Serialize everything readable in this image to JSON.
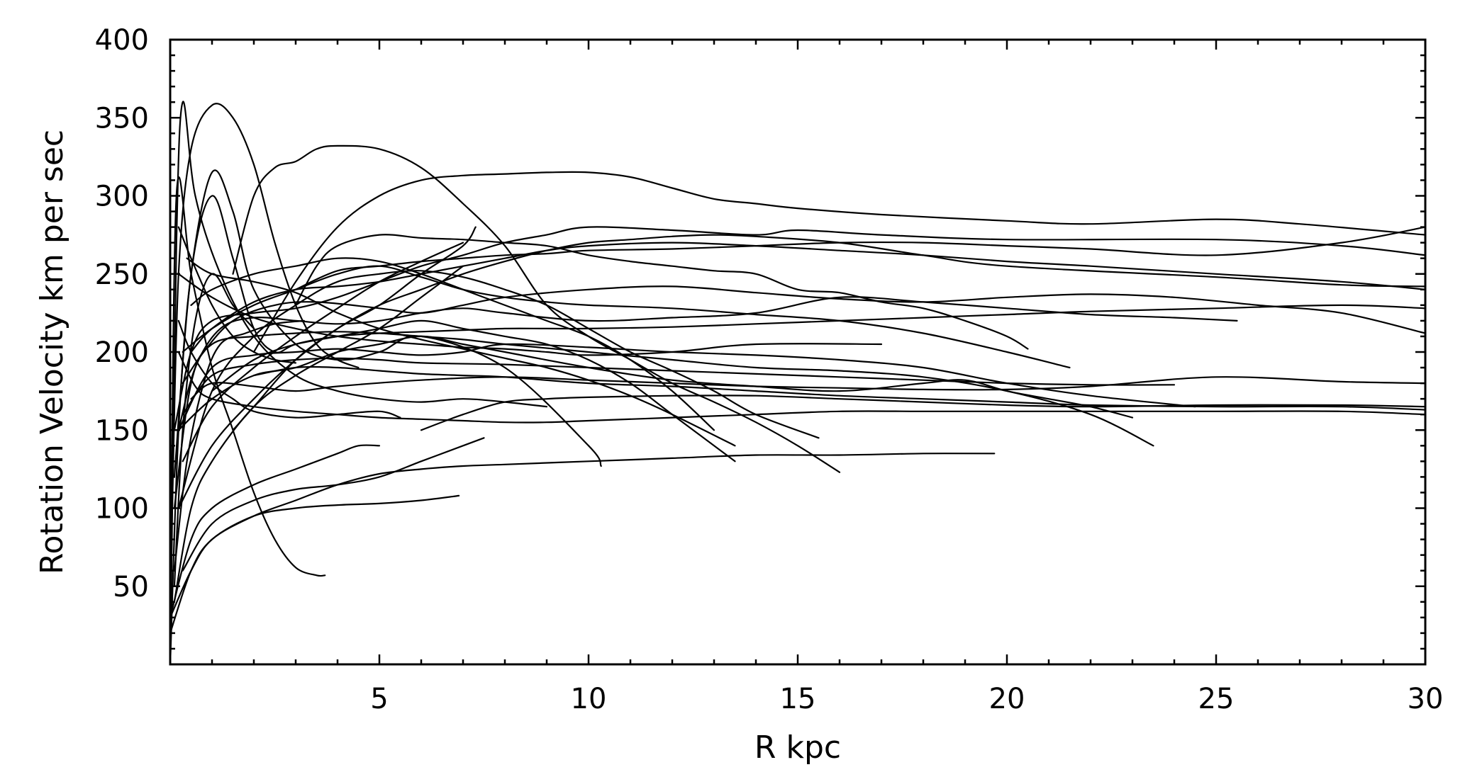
{
  "chart_data": {
    "type": "line",
    "title": "",
    "xlabel": "R  kpc",
    "ylabel": "Rotation Velocity km per sec",
    "xlim": [
      0,
      30
    ],
    "ylim": [
      0,
      400
    ],
    "xticks": [
      5,
      10,
      15,
      20,
      25,
      30
    ],
    "yticks": [
      50,
      100,
      150,
      200,
      250,
      300,
      350,
      400
    ],
    "grid": false,
    "legend": "none",
    "line_color": "#000000",
    "series": [
      {
        "x": [
          0,
          0.15,
          0.5,
          1,
          1.5,
          2,
          2.5,
          3,
          3.5,
          3.7
        ],
        "y": [
          10,
          300,
          250,
          190,
          150,
          110,
          80,
          62,
          57,
          57
        ]
      },
      {
        "x": [
          0,
          0.15,
          0.3,
          0.6,
          1.2,
          2,
          3,
          4,
          5,
          6,
          7,
          8,
          9
        ],
        "y": [
          0,
          270,
          360,
          300,
          250,
          210,
          185,
          175,
          170,
          168,
          170,
          168,
          165
        ]
      },
      {
        "x": [
          0,
          0.2,
          0.5,
          1,
          1.5,
          2,
          3,
          4,
          5,
          6,
          8,
          10,
          10.3
        ],
        "y": [
          0,
          150,
          250,
          315,
          290,
          240,
          205,
          195,
          200,
          210,
          190,
          140,
          127
        ]
      },
      {
        "x": [
          0.05,
          0.2,
          0.5,
          1,
          1.5,
          2,
          2.5,
          3,
          3.5,
          4,
          4.5
        ],
        "y": [
          100,
          250,
          330,
          358,
          350,
          320,
          270,
          230,
          205,
          195,
          190
        ]
      },
      {
        "x": [
          0.1,
          0.5,
          1,
          1.5,
          2,
          2.5,
          3,
          4,
          5,
          6,
          7,
          8,
          9,
          10,
          11,
          12,
          13.5
        ],
        "y": [
          120,
          250,
          300,
          260,
          215,
          200,
          205,
          210,
          215,
          220,
          215,
          210,
          205,
          195,
          180,
          160,
          130
        ]
      },
      {
        "x": [
          1.5,
          2,
          2.5,
          3,
          3.5,
          4,
          5,
          6,
          7,
          8,
          9,
          10,
          11,
          12,
          13,
          14,
          15,
          16
        ],
        "y": [
          250,
          300,
          318,
          322,
          330,
          332,
          330,
          318,
          295,
          268,
          230,
          210,
          195,
          180,
          168,
          155,
          140,
          123
        ]
      },
      {
        "x": [
          2,
          3,
          4,
          5,
          6,
          7,
          8,
          9,
          10,
          11,
          12,
          13,
          14,
          15,
          17,
          20,
          22,
          25,
          27,
          30
        ],
        "y": [
          200,
          245,
          280,
          300,
          310,
          313,
          314,
          315,
          315,
          312,
          305,
          298,
          295,
          292,
          288,
          284,
          282,
          285,
          282,
          275
        ]
      },
      {
        "x": [
          3,
          3.5,
          4,
          5,
          6,
          7,
          8,
          9,
          10,
          11,
          12,
          13,
          14,
          15,
          16,
          17,
          18,
          19,
          20,
          20.5
        ],
        "y": [
          230,
          255,
          268,
          275,
          273,
          272,
          270,
          268,
          262,
          258,
          255,
          252,
          250,
          240,
          238,
          232,
          228,
          220,
          210,
          202
        ]
      },
      {
        "x": [
          0.1,
          0.5,
          1,
          2,
          3,
          4,
          5,
          6,
          7,
          8,
          9,
          10,
          12,
          14,
          15,
          17,
          20,
          25,
          28,
          30
        ],
        "y": [
          150,
          200,
          220,
          225,
          228,
          235,
          245,
          255,
          262,
          270,
          275,
          280,
          278,
          275,
          278,
          275,
          272,
          272,
          268,
          262
        ]
      },
      {
        "x": [
          1.5,
          2,
          3,
          4,
          5,
          6,
          7,
          8,
          9,
          10,
          11,
          12,
          13,
          14,
          16,
          18,
          20,
          25,
          28,
          30
        ],
        "y": [
          150,
          165,
          195,
          215,
          230,
          240,
          250,
          258,
          265,
          270,
          272,
          274,
          275,
          274,
          270,
          262,
          255,
          248,
          243,
          242
        ]
      },
      {
        "x": [
          0.5,
          1,
          2,
          3,
          4,
          5,
          6,
          7,
          8,
          9,
          10,
          12,
          14,
          16,
          18,
          20,
          22,
          25,
          28,
          30
        ],
        "y": [
          200,
          215,
          232,
          240,
          242,
          245,
          250,
          255,
          260,
          265,
          268,
          270,
          268,
          265,
          262,
          258,
          255,
          250,
          245,
          240
        ]
      },
      {
        "x": [
          0.3,
          0.8,
          1.5,
          2.5,
          3.5,
          5,
          6,
          7,
          8,
          10,
          12,
          14,
          16,
          18,
          20,
          22,
          24,
          26,
          28,
          30
        ],
        "y": [
          180,
          200,
          220,
          230,
          232,
          228,
          225,
          230,
          235,
          240,
          242,
          238,
          234,
          232,
          235,
          237,
          235,
          230,
          225,
          212
        ]
      },
      {
        "x": [
          0.2,
          0.6,
          1.2,
          2,
          3,
          4,
          5,
          6,
          7,
          8,
          10,
          12,
          14,
          16,
          18,
          20,
          22,
          24,
          25.5
        ],
        "y": [
          150,
          190,
          215,
          222,
          220,
          218,
          220,
          225,
          228,
          225,
          220,
          222,
          225,
          235,
          232,
          228,
          224,
          222,
          220
        ]
      },
      {
        "x": [
          0.3,
          1,
          2,
          3,
          4,
          5,
          6,
          7,
          8,
          9,
          10,
          12,
          14,
          16,
          18,
          20,
          21.5
        ],
        "y": [
          200,
          215,
          230,
          240,
          250,
          255,
          248,
          240,
          235,
          232,
          230,
          228,
          224,
          220,
          212,
          200,
          190
        ]
      },
      {
        "x": [
          0.2,
          1,
          2,
          3,
          4,
          5,
          6,
          7,
          8,
          9,
          10,
          11,
          12,
          13,
          14,
          15.5
        ],
        "y": [
          100,
          175,
          210,
          230,
          245,
          250,
          252,
          248,
          240,
          230,
          215,
          200,
          188,
          175,
          160,
          145
        ]
      },
      {
        "x": [
          0.1,
          0.5,
          1,
          2,
          3,
          4,
          5,
          6,
          7,
          8,
          10,
          12,
          14,
          16,
          18,
          20,
          22,
          23.5
        ],
        "y": [
          100,
          180,
          205,
          210,
          212,
          213,
          212,
          210,
          208,
          205,
          200,
          195,
          190,
          188,
          184,
          175,
          160,
          140
        ]
      },
      {
        "x": [
          0.2,
          1,
          2,
          3,
          4,
          5,
          6,
          7,
          8,
          10,
          12,
          14,
          16,
          18,
          20,
          22,
          24.5
        ],
        "y": [
          150,
          190,
          198,
          200,
          202,
          200,
          198,
          200,
          205,
          203,
          200,
          198,
          195,
          190,
          180,
          172,
          165
        ]
      },
      {
        "x": [
          0.3,
          1,
          2,
          3,
          4,
          5,
          6,
          8,
          10,
          12,
          14,
          16,
          18,
          20,
          22,
          24
        ],
        "y": [
          160,
          185,
          192,
          195,
          196,
          195,
          193,
          192,
          190,
          188,
          186,
          184,
          182,
          180,
          179,
          179
        ]
      },
      {
        "x": [
          0.5,
          1,
          2,
          3,
          4,
          6,
          8,
          10,
          12,
          14,
          16,
          18,
          20,
          22,
          25,
          28,
          30
        ],
        "y": [
          170,
          180,
          178,
          175,
          178,
          182,
          184,
          182,
          180,
          178,
          177,
          176,
          176,
          178,
          184,
          181,
          180
        ]
      },
      {
        "x": [
          0.2,
          1,
          2,
          3,
          4,
          5,
          6,
          7,
          8,
          10,
          12,
          14,
          16,
          18,
          19,
          20,
          21,
          22,
          23
        ],
        "y": [
          150,
          170,
          185,
          190,
          200,
          205,
          210,
          205,
          200,
          190,
          182,
          178,
          175,
          180,
          182,
          175,
          170,
          165,
          158
        ]
      },
      {
        "x": [
          0.2,
          0.6,
          1,
          2,
          3,
          4,
          5,
          6,
          7,
          8,
          9,
          10,
          12,
          14,
          16,
          18,
          20,
          22,
          25,
          28,
          30
        ],
        "y": [
          200,
          178,
          170,
          165,
          162,
          160,
          158,
          157,
          156,
          155,
          155,
          156,
          158,
          160,
          162,
          162,
          162,
          162,
          162,
          162,
          160
        ]
      },
      {
        "x": [
          6,
          7,
          8,
          9,
          10,
          12,
          14,
          16,
          18,
          20,
          22,
          25,
          28,
          30
        ],
        "y": [
          150,
          160,
          168,
          170,
          171,
          172,
          172,
          170,
          168,
          166,
          165,
          166,
          166,
          165
        ]
      },
      {
        "x": [
          0.2,
          0.5,
          1,
          1.5,
          2,
          3,
          4,
          5,
          5.5
        ],
        "y": [
          220,
          200,
          180,
          170,
          162,
          158,
          160,
          162,
          158
        ]
      },
      {
        "x": [
          0,
          0.5,
          1,
          2,
          3,
          4,
          4.5,
          5
        ],
        "y": [
          30,
          80,
          100,
          115,
          125,
          135,
          140,
          140
        ]
      },
      {
        "x": [
          0,
          0.5,
          1,
          2,
          3,
          4,
          5,
          6,
          7,
          8,
          10,
          12,
          14,
          16,
          18,
          19.7
        ],
        "y": [
          20,
          60,
          80,
          95,
          105,
          115,
          122,
          125,
          127,
          128,
          130,
          132,
          134,
          134,
          135,
          135
        ]
      },
      {
        "x": [
          0,
          0.5,
          1,
          2,
          3,
          4,
          5,
          6,
          6.9
        ],
        "y": [
          30,
          60,
          80,
          95,
          100,
          102,
          103,
          105,
          108
        ]
      },
      {
        "x": [
          0.3,
          1,
          2,
          3,
          4,
          5,
          6,
          7,
          7.5
        ],
        "y": [
          60,
          90,
          105,
          112,
          115,
          120,
          130,
          140,
          145
        ]
      },
      {
        "x": [
          0.2,
          1,
          2,
          3,
          4,
          5,
          6,
          7,
          7.3
        ],
        "y": [
          100,
          140,
          170,
          195,
          215,
          230,
          250,
          268,
          280
        ]
      },
      {
        "x": [
          0.3,
          1,
          2,
          3,
          4,
          5,
          6,
          7
        ],
        "y": [
          130,
          165,
          190,
          210,
          228,
          245,
          258,
          270
        ]
      },
      {
        "x": [
          0.1,
          0.5,
          1,
          2,
          3,
          4,
          5,
          6,
          7
        ],
        "y": [
          40,
          100,
          130,
          165,
          185,
          200,
          215,
          235,
          255
        ]
      },
      {
        "x": [
          0.5,
          1,
          2,
          3,
          4,
          5,
          6,
          7,
          8,
          9,
          10,
          11,
          12,
          13
        ],
        "y": [
          230,
          240,
          250,
          255,
          260,
          258,
          250,
          240,
          230,
          220,
          210,
          195,
          175,
          150
        ]
      },
      {
        "x": [
          0.4,
          1,
          2,
          3,
          4,
          5,
          6,
          7,
          8,
          9,
          10,
          11,
          12,
          13.5
        ],
        "y": [
          260,
          250,
          245,
          238,
          225,
          215,
          208,
          202,
          196,
          190,
          182,
          172,
          160,
          140
        ]
      },
      {
        "x": [
          0.2,
          1,
          2,
          3,
          4,
          5,
          6,
          7,
          8,
          9,
          10,
          12,
          14,
          17
        ],
        "y": [
          250,
          235,
          222,
          215,
          210,
          207,
          205,
          203,
          202,
          200,
          198,
          200,
          205,
          205
        ]
      },
      {
        "x": [
          1,
          2,
          3,
          4,
          5,
          6,
          7,
          8,
          9,
          10,
          12,
          14,
          16,
          18,
          20,
          22,
          25,
          28,
          30
        ],
        "y": [
          175,
          195,
          205,
          210,
          212,
          213,
          214,
          215,
          215,
          215,
          216,
          218,
          220,
          222,
          224,
          226,
          228,
          230,
          228
        ]
      },
      {
        "x": [
          2,
          3,
          4,
          5,
          6,
          7,
          8,
          10,
          12,
          14,
          16,
          18,
          20,
          22,
          25,
          28,
          30
        ],
        "y": [
          185,
          190,
          190,
          188,
          186,
          185,
          184,
          180,
          178,
          175,
          172,
          170,
          168,
          166,
          165,
          165,
          163
        ]
      },
      {
        "x": [
          3,
          4,
          5,
          6,
          7,
          8,
          9,
          10,
          12,
          14,
          16,
          18,
          20,
          22,
          25,
          28,
          30
        ],
        "y": [
          240,
          252,
          255,
          258,
          260,
          262,
          263,
          265,
          266,
          268,
          270,
          270,
          268,
          266,
          262,
          270,
          280
        ]
      },
      {
        "x": [
          0.2,
          0.5,
          1,
          1.5,
          2,
          2.5,
          3
        ],
        "y": [
          280,
          260,
          230,
          210,
          200,
          195,
          193
        ]
      },
      {
        "x": [
          0.1,
          0.3,
          0.6,
          1,
          1.5,
          2
        ],
        "y": [
          50,
          150,
          220,
          250,
          230,
          215
        ]
      },
      {
        "x": [
          0.1,
          0.4,
          0.8,
          1.2,
          1.8,
          2.5,
          3.2
        ],
        "y": [
          60,
          130,
          180,
          205,
          212,
          218,
          220
        ]
      }
    ]
  }
}
